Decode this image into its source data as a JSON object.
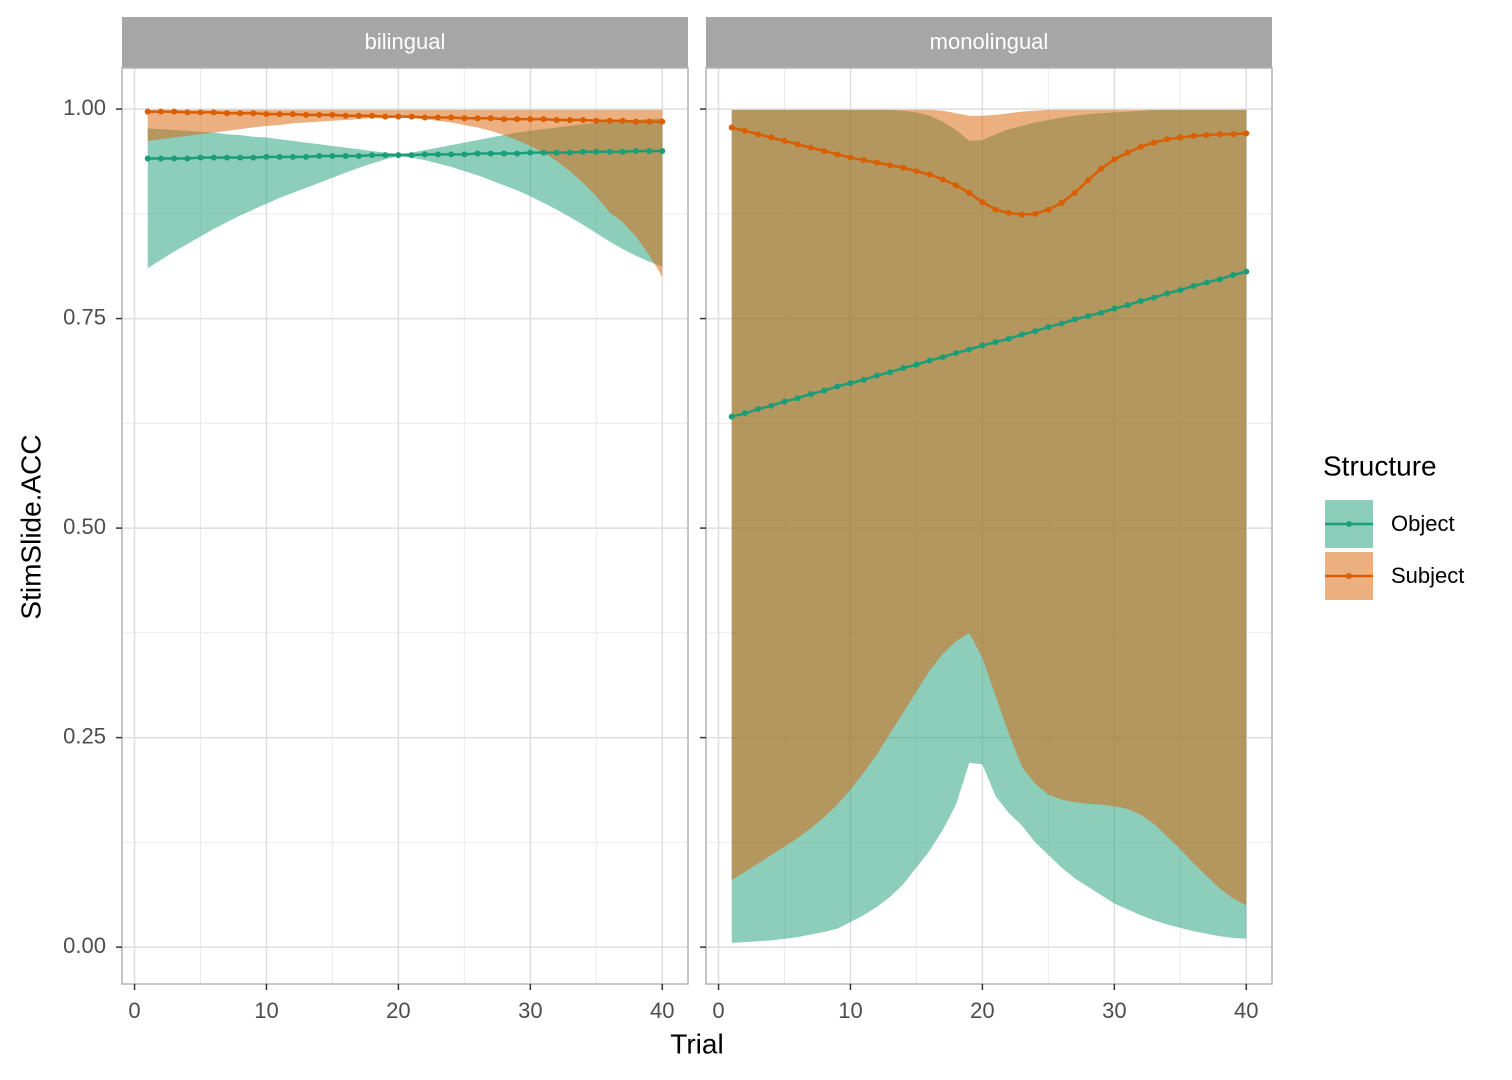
{
  "chart_data": {
    "type": "line",
    "y_label": "StimSlide.ACC",
    "x_label": "Trial",
    "legend_title": "Structure",
    "x": [
      1,
      2,
      3,
      4,
      5,
      6,
      7,
      8,
      9,
      10,
      11,
      12,
      13,
      14,
      15,
      16,
      17,
      18,
      19,
      20,
      21,
      22,
      23,
      24,
      25,
      26,
      27,
      28,
      29,
      30,
      31,
      32,
      33,
      34,
      35,
      36,
      37,
      38,
      39,
      40
    ],
    "xlim": [
      -0.95,
      41.95
    ],
    "xticks": [
      0,
      10,
      20,
      30,
      40
    ],
    "ylim": [
      -0.044,
      1.049
    ],
    "yticks": [
      {
        "value": 0,
        "label": "0.00"
      },
      {
        "value": 0.25,
        "label": "0.25"
      },
      {
        "value": 0.5,
        "label": "0.50"
      },
      {
        "value": 0.75,
        "label": "0.75"
      },
      {
        "value": 1,
        "label": "1.00"
      }
    ],
    "grid": true,
    "legend": "right",
    "facets": [
      {
        "title": "bilingual",
        "series": [
          {
            "name": "Object",
            "color": "#1b9e77",
            "values": [
              0.941,
              0.941,
              0.941,
              0.941,
              0.942,
              0.942,
              0.942,
              0.942,
              0.942,
              0.943,
              0.943,
              0.943,
              0.943,
              0.944,
              0.944,
              0.944,
              0.944,
              0.945,
              0.945,
              0.945,
              0.945,
              0.946,
              0.946,
              0.946,
              0.946,
              0.947,
              0.947,
              0.947,
              0.947,
              0.948,
              0.948,
              0.948,
              0.948,
              0.949,
              0.949,
              0.949,
              0.949,
              0.95,
              0.95,
              0.95
            ],
            "lower": [
              0.81,
              0.82,
              0.83,
              0.839,
              0.848,
              0.857,
              0.865,
              0.873,
              0.88,
              0.887,
              0.894,
              0.9,
              0.906,
              0.912,
              0.918,
              0.924,
              0.93,
              0.935,
              0.94,
              0.944,
              0.942,
              0.939,
              0.935,
              0.931,
              0.926,
              0.921,
              0.915,
              0.909,
              0.903,
              0.896,
              0.888,
              0.88,
              0.871,
              0.862,
              0.852,
              0.842,
              0.833,
              0.825,
              0.818,
              0.812
            ],
            "upper": [
              0.977,
              0.976,
              0.975,
              0.974,
              0.973,
              0.972,
              0.97,
              0.969,
              0.967,
              0.966,
              0.964,
              0.962,
              0.96,
              0.958,
              0.956,
              0.954,
              0.952,
              0.95,
              0.948,
              0.947,
              0.948,
              0.951,
              0.954,
              0.957,
              0.96,
              0.963,
              0.966,
              0.969,
              0.972,
              0.974,
              0.976,
              0.978,
              0.98,
              0.982,
              0.984,
              0.985,
              0.986,
              0.987,
              0.988,
              0.989
            ]
          },
          {
            "name": "Subject",
            "color": "#d95f02",
            "values": [
              0.997,
              0.997,
              0.997,
              0.996,
              0.996,
              0.996,
              0.995,
              0.995,
              0.995,
              0.994,
              0.994,
              0.994,
              0.993,
              0.993,
              0.993,
              0.992,
              0.992,
              0.992,
              0.991,
              0.991,
              0.991,
              0.99,
              0.99,
              0.99,
              0.989,
              0.989,
              0.989,
              0.988,
              0.988,
              0.988,
              0.988,
              0.987,
              0.987,
              0.987,
              0.986,
              0.986,
              0.986,
              0.985,
              0.985,
              0.985
            ],
            "lower": [
              0.962,
              0.964,
              0.966,
              0.968,
              0.97,
              0.972,
              0.974,
              0.976,
              0.978,
              0.98,
              0.981,
              0.983,
              0.984,
              0.985,
              0.986,
              0.987,
              0.988,
              0.989,
              0.989,
              0.99,
              0.989,
              0.988,
              0.986,
              0.984,
              0.981,
              0.978,
              0.974,
              0.969,
              0.963,
              0.956,
              0.948,
              0.938,
              0.926,
              0.912,
              0.896,
              0.877,
              0.865,
              0.848,
              0.826,
              0.8
            ],
            "upper": [
              0.999,
              0.999,
              0.999,
              0.999,
              0.999,
              0.999,
              0.999,
              0.999,
              0.999,
              0.999,
              0.999,
              0.999,
              0.999,
              0.999,
              0.999,
              0.999,
              0.999,
              0.999,
              0.999,
              0.999,
              0.999,
              0.999,
              0.999,
              0.999,
              0.999,
              0.999,
              0.999,
              0.999,
              0.999,
              0.999,
              0.999,
              0.999,
              0.999,
              0.999,
              0.999,
              0.999,
              0.999,
              0.999,
              0.999,
              0.999
            ]
          }
        ]
      },
      {
        "title": "monolingual",
        "series": [
          {
            "name": "Object",
            "color": "#1b9e77",
            "values": [
              0.633,
              0.637,
              0.642,
              0.646,
              0.651,
              0.655,
              0.66,
              0.664,
              0.669,
              0.673,
              0.677,
              0.682,
              0.686,
              0.691,
              0.695,
              0.7,
              0.704,
              0.709,
              0.713,
              0.718,
              0.722,
              0.726,
              0.731,
              0.735,
              0.74,
              0.744,
              0.749,
              0.753,
              0.757,
              0.762,
              0.766,
              0.771,
              0.775,
              0.78,
              0.784,
              0.789,
              0.793,
              0.797,
              0.802,
              0.806
            ],
            "lower": [
              0.005,
              0.006,
              0.007,
              0.008,
              0.01,
              0.012,
              0.015,
              0.018,
              0.022,
              0.03,
              0.038,
              0.048,
              0.06,
              0.075,
              0.095,
              0.115,
              0.14,
              0.17,
              0.22,
              0.218,
              0.18,
              0.16,
              0.145,
              0.125,
              0.11,
              0.095,
              0.082,
              0.072,
              0.062,
              0.052,
              0.045,
              0.038,
              0.032,
              0.027,
              0.023,
              0.019,
              0.016,
              0.013,
              0.011,
              0.01
            ],
            "upper": [
              0.999,
              0.999,
              0.999,
              0.999,
              0.999,
              0.999,
              0.999,
              0.999,
              0.999,
              0.999,
              0.999,
              0.999,
              0.999,
              0.998,
              0.996,
              0.992,
              0.985,
              0.975,
              0.962,
              0.963,
              0.97,
              0.976,
              0.98,
              0.984,
              0.987,
              0.99,
              0.992,
              0.994,
              0.995,
              0.996,
              0.997,
              0.998,
              0.999,
              0.999,
              0.999,
              0.999,
              0.999,
              0.999,
              0.999,
              0.999
            ]
          },
          {
            "name": "Subject",
            "color": "#d95f02",
            "values": [
              0.978,
              0.974,
              0.97,
              0.966,
              0.962,
              0.958,
              0.954,
              0.95,
              0.946,
              0.942,
              0.939,
              0.936,
              0.933,
              0.93,
              0.926,
              0.922,
              0.916,
              0.909,
              0.9,
              0.889,
              0.88,
              0.876,
              0.874,
              0.875,
              0.88,
              0.888,
              0.9,
              0.915,
              0.929,
              0.94,
              0.948,
              0.955,
              0.96,
              0.964,
              0.966,
              0.968,
              0.969,
              0.97,
              0.97,
              0.971
            ],
            "lower": [
              0.08,
              0.09,
              0.1,
              0.11,
              0.12,
              0.13,
              0.142,
              0.155,
              0.17,
              0.188,
              0.208,
              0.23,
              0.255,
              0.28,
              0.305,
              0.33,
              0.35,
              0.365,
              0.375,
              0.345,
              0.3,
              0.255,
              0.215,
              0.195,
              0.182,
              0.176,
              0.173,
              0.171,
              0.17,
              0.168,
              0.165,
              0.158,
              0.147,
              0.132,
              0.117,
              0.1,
              0.085,
              0.07,
              0.058,
              0.05
            ],
            "upper": [
              0.999,
              0.999,
              0.999,
              0.999,
              0.999,
              0.999,
              0.999,
              0.999,
              0.999,
              0.999,
              0.999,
              0.999,
              0.999,
              0.999,
              0.999,
              0.999,
              0.998,
              0.995,
              0.992,
              0.992,
              0.993,
              0.995,
              0.997,
              0.998,
              0.999,
              0.999,
              0.999,
              0.999,
              0.999,
              0.999,
              0.999,
              0.999,
              0.999,
              0.999,
              0.999,
              0.999,
              0.999,
              0.999,
              0.999,
              0.999
            ]
          }
        ]
      }
    ]
  }
}
